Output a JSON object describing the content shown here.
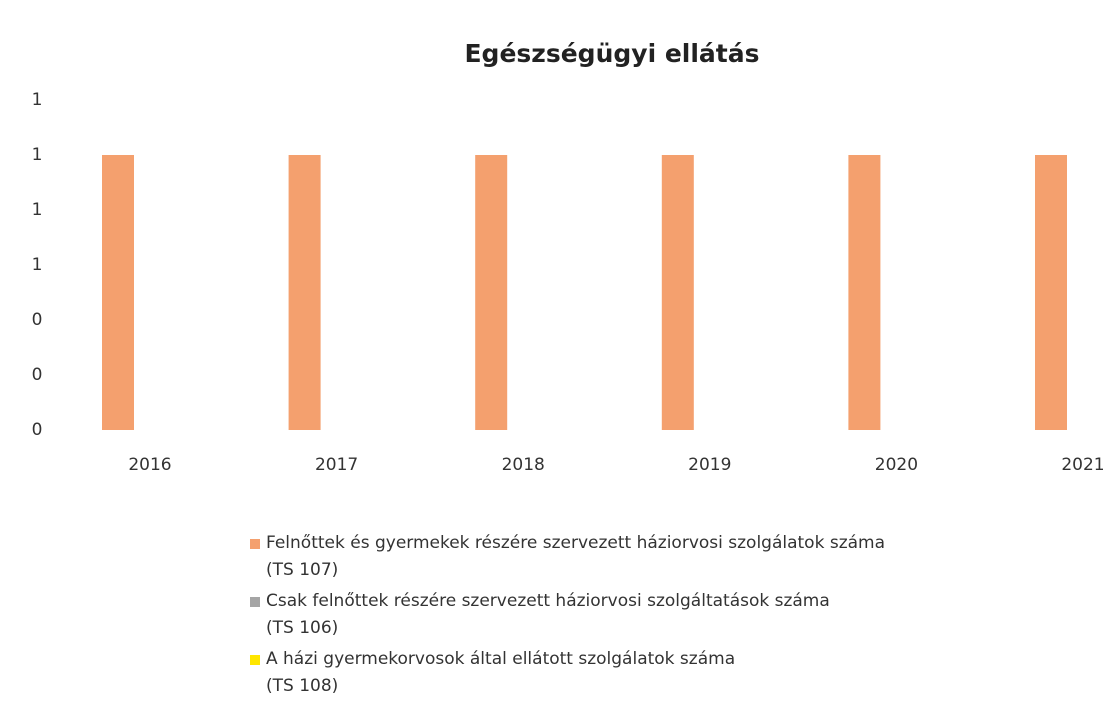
{
  "chart_data": {
    "type": "bar",
    "title": "Egészségügyi ellátás",
    "categories": [
      "2016",
      "2017",
      "2018",
      "2019",
      "2020",
      "2021"
    ],
    "series": [
      {
        "name": "Felnőttek és gyermekek részére szervezett háziorvosi szolgálatok száma\n(TS 107)",
        "color": "#f4a06e",
        "values": [
          1,
          1,
          1,
          1,
          1,
          1
        ]
      },
      {
        "name": "Csak felnőttek részére szervezett háziorvosi szolgáltatások száma\n(TS 106)",
        "color": "#a5a5a5",
        "values": [
          0,
          0,
          0,
          0,
          0,
          0
        ]
      },
      {
        "name": "A házi gyermekorvosok által ellátott szolgálatok száma\n(TS 108)",
        "color": "#ffe600",
        "values": [
          0,
          0,
          0,
          0,
          0,
          0
        ]
      }
    ],
    "ylim": [
      0,
      1.2
    ],
    "yticks": [
      0,
      {
        "value": 0.2,
        "label": "0"
      },
      {
        "value": 0.4,
        "label": "0"
      },
      {
        "value": 0.6,
        "label": "1"
      },
      {
        "value": 0.8,
        "label": "1"
      },
      1,
      {
        "value": 1.2,
        "label": "1"
      }
    ],
    "grid": false,
    "legend": "bottom"
  }
}
